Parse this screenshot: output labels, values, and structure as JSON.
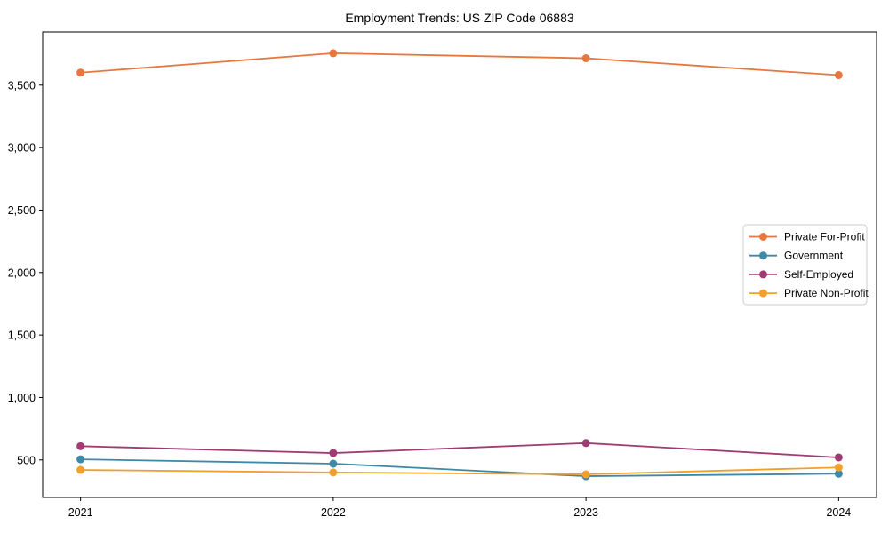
{
  "chart_data": {
    "type": "line",
    "title": "Employment Trends: US ZIP Code 06883",
    "categories": [
      "2021",
      "2022",
      "2023",
      "2024"
    ],
    "series": [
      {
        "name": "Private For-Profit",
        "color": "#e8773f",
        "values": [
          3600,
          3755,
          3715,
          3580
        ]
      },
      {
        "name": "Government",
        "color": "#3e89a8",
        "values": [
          505,
          470,
          370,
          390
        ]
      },
      {
        "name": "Self-Employed",
        "color": "#a03b73",
        "values": [
          610,
          555,
          635,
          520
        ]
      },
      {
        "name": "Private Non-Profit",
        "color": "#f0a02c",
        "values": [
          420,
          400,
          385,
          440
        ]
      }
    ],
    "xlabel": "",
    "ylabel": "",
    "ylim": [
      200,
      3925
    ],
    "yticks": [
      500,
      1000,
      1500,
      2000,
      2500,
      3000,
      3500
    ],
    "ytick_labels": [
      "500",
      "1,000",
      "1,500",
      "2,000",
      "2,500",
      "3,000",
      "3,500"
    ],
    "grid": false,
    "legend_position": "center-right",
    "marker": "circle",
    "background_color": "#ffffff",
    "axis_color": "#000000",
    "legend_border_color": "#cccccc"
  }
}
